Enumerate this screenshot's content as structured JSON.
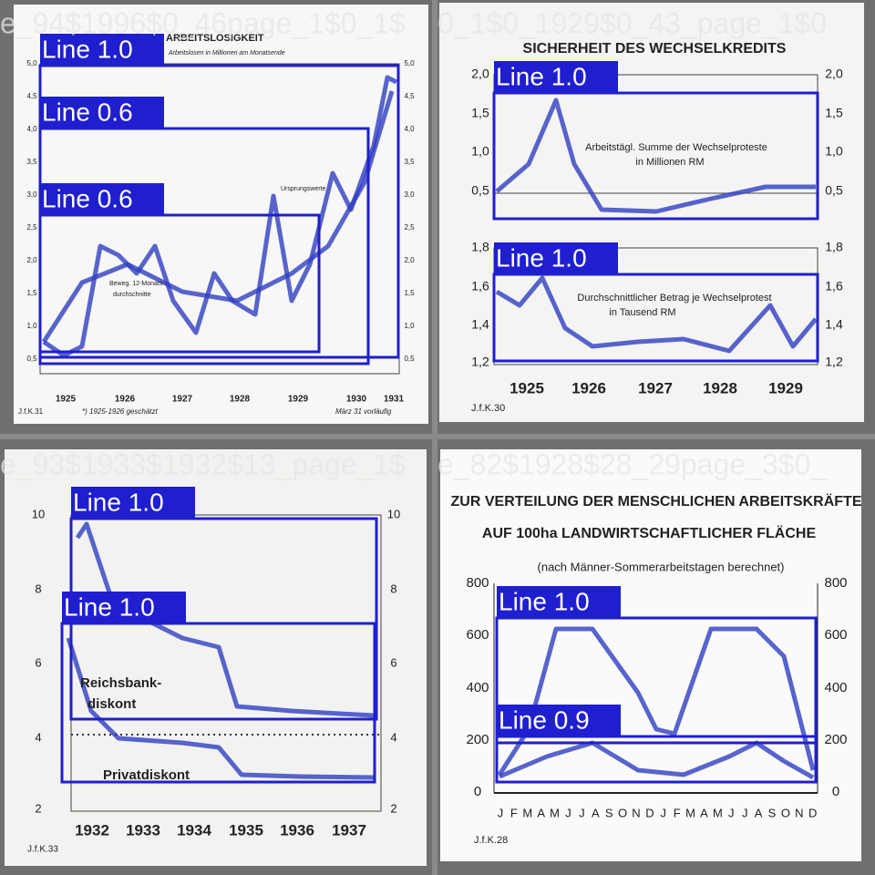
{
  "tiles": [
    {
      "file": "e_94$1996$0_46page_1$0_1$",
      "title": "ARBEITSLOSIGKEIT",
      "subtitle": "Arbeitslosen in Millionen am Monatsende",
      "yticks": [
        "5,0",
        "4,5",
        "4,0",
        "3,5",
        "3,0",
        "2,5",
        "2,0",
        "1,5",
        "1,0",
        "0,5"
      ],
      "xlabels": [
        "1925",
        "1926",
        "1927",
        "1928",
        "1929",
        "1930",
        "1931"
      ],
      "annotations": [
        "Ursprungswerte",
        "Beweg. 12-Monats-",
        "durchschnitte"
      ],
      "footer": [
        "J.f.K.31",
        "*) 1925-1926 geschätzt",
        "März 31 vorläufig"
      ],
      "detections": [
        "Line 1.0",
        "Line 0.6",
        "Line 0.6"
      ]
    },
    {
      "file": "0_1$0_1929$0_43_page_1$0",
      "title": "SICHERHEIT DES WECHSELKREDITS",
      "yticks_top": [
        "2,0",
        "1,5",
        "1,0",
        "0,5"
      ],
      "yticks_bottom": [
        "1,8",
        "1,6",
        "1,4",
        "1,2"
      ],
      "xlabels": [
        "1925",
        "1926",
        "1927",
        "1928",
        "1929"
      ],
      "annotations": [
        "Arbeitstägl. Summe der Wechselproteste",
        "in Millionen RM",
        "Durchschnittlicher Betrag je Wechselprotest",
        "in Tausend RM"
      ],
      "footer": [
        "J.f.K.30"
      ],
      "detections": [
        "Line 1.0",
        "Line 1.0"
      ]
    },
    {
      "file": "e_93$1933$1932$13_page_1$",
      "yticks": [
        "10",
        "8",
        "6",
        "4",
        "2"
      ],
      "xlabels": [
        "1932",
        "1933",
        "1934",
        "1935",
        "1936",
        "1937"
      ],
      "annotations": [
        "Reichsbank-",
        "diskont",
        "Privatdiskont"
      ],
      "footer": [
        "J.f.K.33"
      ],
      "detections": [
        "Line 1.0",
        "Line 1.0"
      ]
    },
    {
      "file": "e_82$1928$28_29page_3$0_",
      "title": [
        "ZUR VERTEILUNG DER MENSCHLICHEN ARBEITSKRÄFTE",
        "AUF 100ha LANDWIRTSCHAFTLICHER FLÄCHE"
      ],
      "subtitle": "(nach Männer-Sommerarbeitstagen berechnet)",
      "yticks": [
        "800",
        "600",
        "400",
        "200",
        "0"
      ],
      "xlabels": [
        "J",
        "F",
        "M",
        "A",
        "M",
        "J",
        "J",
        "A",
        "S",
        "O",
        "N",
        "D",
        "J",
        "F",
        "M",
        "A",
        "M",
        "J",
        "J",
        "A",
        "S",
        "O",
        "N",
        "D"
      ],
      "footer": [
        "J.f.K.28"
      ],
      "detections": [
        "Line 1.0",
        "Line 0.9"
      ]
    }
  ]
}
